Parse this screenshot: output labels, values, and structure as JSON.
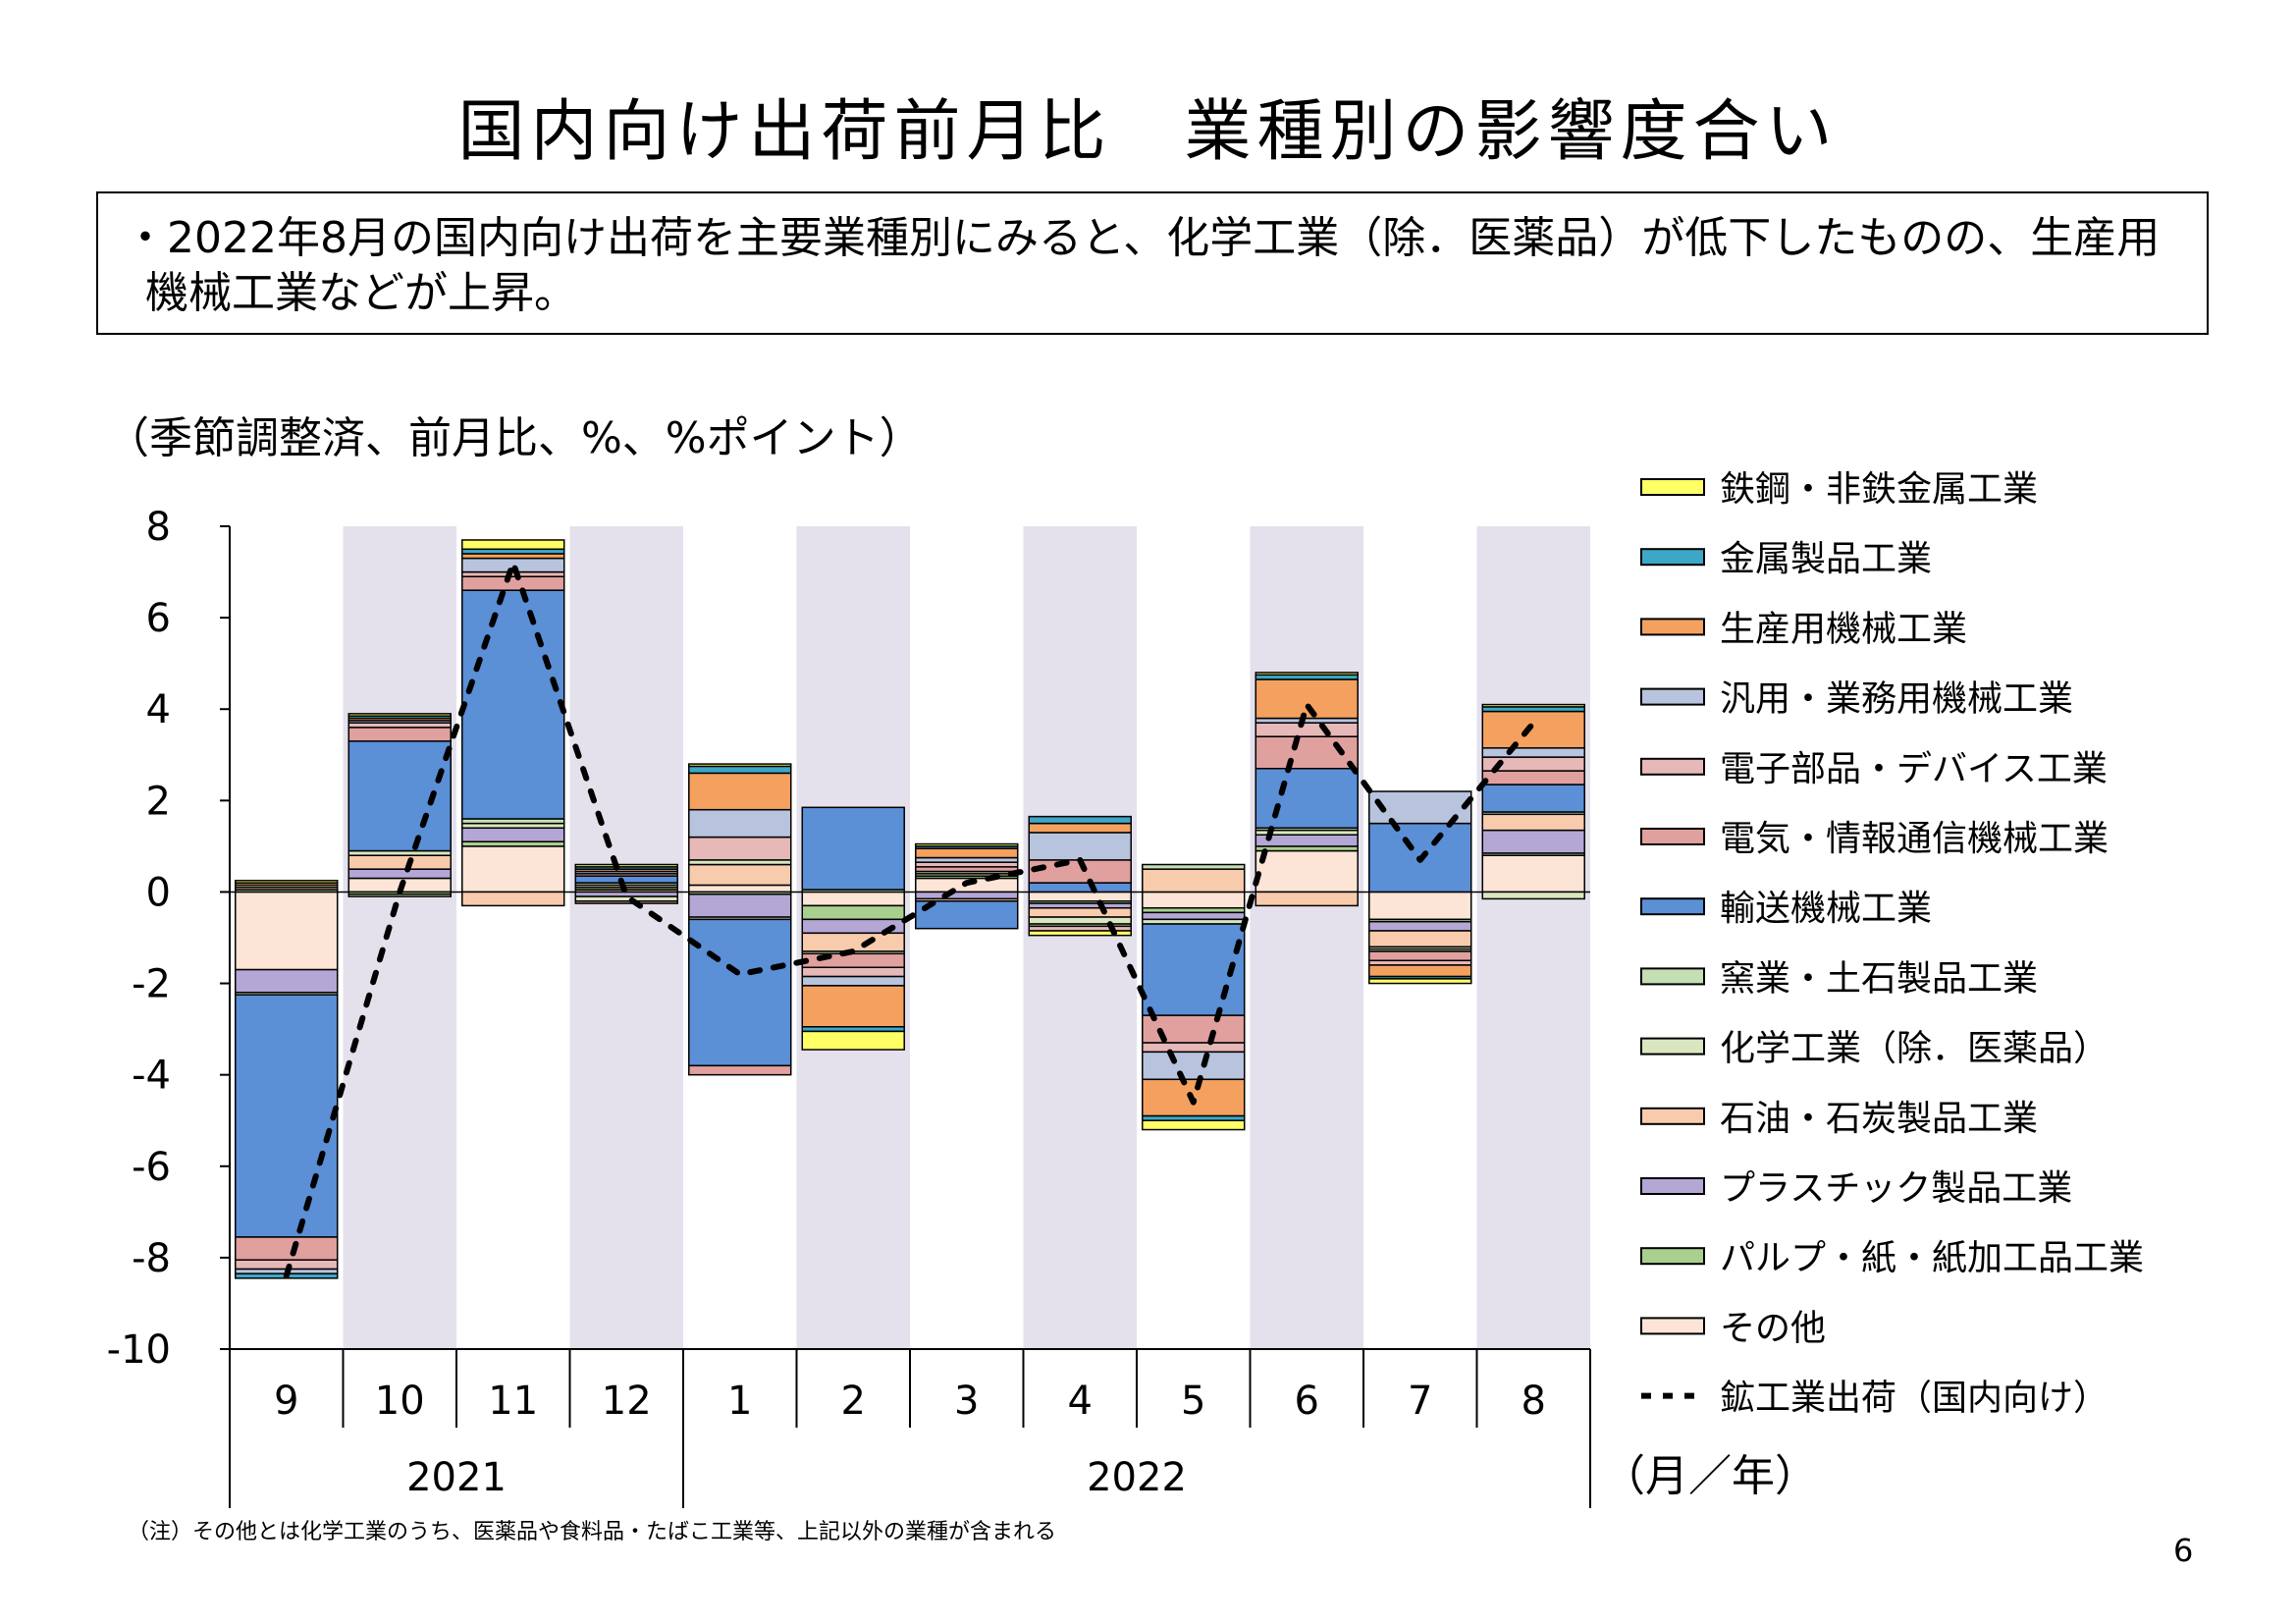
{
  "title": "国内向け出荷前月比　業種別の影響度合い",
  "summary": "・2022年8月の国内向け出荷を主要業種別にみると、化学工業（除．医薬品）が低下したものの、生産用機械工業などが上昇。",
  "unit_label": "（季節調整済、前月比、%、%ポイント）",
  "axis_unit": "（月／年）",
  "note": "（注）その他とは化学工業のうち、医薬品や食料品・たばこ工業等、上記以外の業種が含まれる",
  "page_number": "6",
  "chart_data": {
    "type": "bar",
    "stacked": true,
    "ylim": [
      -10,
      8
    ],
    "yticks": [
      8,
      6,
      4,
      2,
      0,
      -2,
      -4,
      -6,
      -8,
      -10
    ],
    "categories": [
      "9",
      "10",
      "11",
      "12",
      "1",
      "2",
      "3",
      "4",
      "5",
      "6",
      "7",
      "8"
    ],
    "years": [
      {
        "label": "2021",
        "months": 4
      },
      {
        "label": "2022",
        "months": 8
      }
    ],
    "shaded_months": [
      "10",
      "12",
      "2",
      "4",
      "6",
      "8"
    ],
    "shade_color": "#e4e0ec",
    "series": [
      {
        "name": "その他",
        "color": "#fce4d6",
        "values": [
          -1.7,
          0.3,
          1.0,
          0.05,
          0.15,
          -0.3,
          0.3,
          -0.2,
          -0.35,
          0.9,
          -0.6,
          0.8
        ]
      },
      {
        "name": "パルプ・紙・紙加工品工業",
        "color": "#a9d08e",
        "values": [
          0.05,
          -0.05,
          0.1,
          0.05,
          -0.05,
          -0.3,
          0.05,
          -0.05,
          -0.1,
          0.1,
          -0.05,
          0.05
        ]
      },
      {
        "name": "プラスチック製品工業",
        "color": "#b4a7d6",
        "values": [
          -0.5,
          0.2,
          0.3,
          -0.1,
          -0.5,
          -0.3,
          -0.15,
          -0.1,
          -0.15,
          0.25,
          -0.2,
          0.5
        ]
      },
      {
        "name": "石油・石炭製品工業",
        "color": "#f8cbad",
        "values": [
          0.05,
          0.3,
          -0.3,
          0.05,
          0.45,
          -0.4,
          -0.05,
          -0.2,
          0.5,
          -0.3,
          -0.35,
          0.35
        ]
      },
      {
        "name": "化学工業（除．医薬品）",
        "color": "#d9e6bf",
        "values": [
          -0.05,
          0.1,
          0.1,
          -0.1,
          0.1,
          -0.05,
          0.05,
          -0.15,
          -0.1,
          0.1,
          -0.05,
          -0.15
        ]
      },
      {
        "name": "窯業・土石製品工業",
        "color": "#c5dfb4",
        "values": [
          0.05,
          -0.05,
          0.1,
          0.05,
          -0.05,
          0.05,
          0.05,
          -0.05,
          0.1,
          0.05,
          -0.05,
          0.05
        ]
      },
      {
        "name": "輸送機械工業",
        "color": "#5b8fd6",
        "values": [
          -5.3,
          2.4,
          5.0,
          0.15,
          -3.2,
          1.8,
          -0.6,
          0.2,
          -2.0,
          1.3,
          1.5,
          0.6
        ]
      },
      {
        "name": "電気・情報通信機械工業",
        "color": "#e0a09e",
        "values": [
          -0.5,
          0.3,
          0.3,
          -0.05,
          -0.2,
          -0.3,
          0.1,
          0.5,
          -0.6,
          0.7,
          -0.2,
          0.3
        ]
      },
      {
        "name": "電子部品・デバイス工業",
        "color": "#e6b8b7",
        "values": [
          -0.2,
          0.1,
          0.1,
          0.05,
          0.5,
          -0.2,
          0.1,
          -0.1,
          -0.2,
          0.3,
          -0.1,
          0.3
        ]
      },
      {
        "name": "汎用・業務用機械工業",
        "color": "#b8c4de",
        "values": [
          -0.1,
          0.05,
          0.3,
          0.05,
          0.6,
          -0.2,
          0.1,
          0.6,
          -0.6,
          0.1,
          0.7,
          0.2
        ]
      },
      {
        "name": "生産用機械工業",
        "color": "#f4a15f",
        "values": [
          0.05,
          0.05,
          0.1,
          0.05,
          0.8,
          -0.9,
          0.2,
          0.2,
          -0.8,
          0.85,
          -0.25,
          0.8
        ]
      },
      {
        "name": "金属製品工業",
        "color": "#3ca7c7",
        "values": [
          -0.1,
          0.05,
          0.1,
          0.05,
          0.15,
          -0.1,
          0.05,
          0.15,
          -0.1,
          0.1,
          -0.05,
          0.1
        ]
      },
      {
        "name": "鉄鋼・非鉄金属工業",
        "color": "#ffff66",
        "values": [
          0.05,
          0.05,
          0.2,
          0.05,
          0.05,
          -0.4,
          0.05,
          -0.1,
          -0.2,
          0.05,
          -0.1,
          0.05
        ]
      }
    ],
    "line": {
      "name": "鉱工業出荷（国内向け）",
      "style": "dotted",
      "color": "#000000",
      "values": [
        -8.4,
        0.0,
        7.2,
        -0.1,
        -1.8,
        -1.3,
        0.2,
        0.7,
        -4.6,
        4.1,
        0.7,
        3.7
      ]
    },
    "legend_order": [
      "鉄鋼・非鉄金属工業",
      "金属製品工業",
      "生産用機械工業",
      "汎用・業務用機械工業",
      "電子部品・デバイス工業",
      "電気・情報通信機械工業",
      "輸送機械工業",
      "窯業・土石製品工業",
      "化学工業（除．医薬品）",
      "石油・石炭製品工業",
      "プラスチック製品工業",
      "パルプ・紙・紙加工品工業",
      "その他",
      "鉱工業出荷（国内向け）"
    ]
  }
}
